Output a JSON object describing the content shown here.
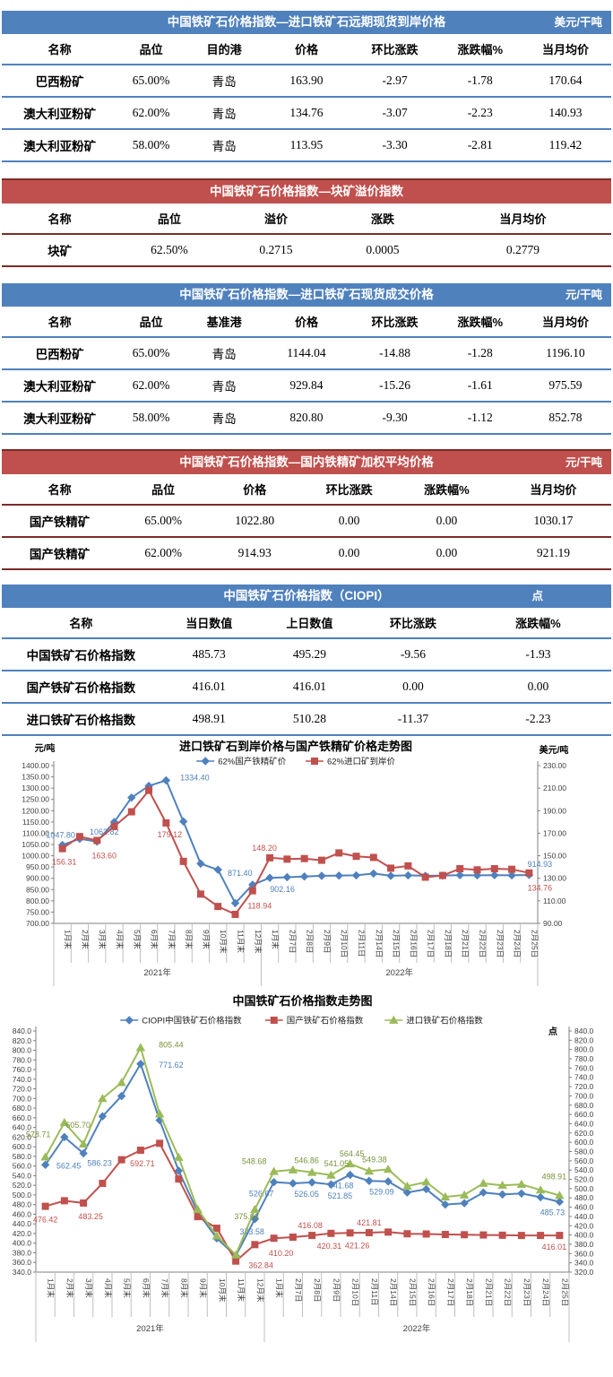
{
  "colors": {
    "blue_header": "#4F81BD",
    "red_header": "#C0504D",
    "red_border": "#7B2C28",
    "axis_gray": "#808080",
    "separator_gray": "#BFBFBF"
  },
  "tables": [
    {
      "theme": "blue",
      "title": "中国铁矿石价格指数—进口铁矿石远期现货到岸价格",
      "unit": "美元/干吨",
      "columns": [
        "名称",
        "品位",
        "目的港",
        "价格",
        "环比涨跌",
        "涨跌幅%",
        "当月均价"
      ],
      "rows": [
        [
          "巴西粉矿",
          "65.00%",
          "青岛",
          "163.90",
          "-2.97",
          "-1.78",
          "170.64"
        ],
        [
          "澳大利亚粉矿",
          "62.00%",
          "青岛",
          "134.76",
          "-3.07",
          "-2.23",
          "140.93"
        ],
        [
          "澳大利亚粉矿",
          "58.00%",
          "青岛",
          "113.95",
          "-3.30",
          "-2.81",
          "119.42"
        ]
      ]
    },
    {
      "theme": "red",
      "title": "中国铁矿石价格指数—块矿溢价指数",
      "unit": "",
      "columns": [
        "名称",
        "品位",
        "溢价",
        "涨跌",
        "当月均价"
      ],
      "rows": [
        [
          "块矿",
          "62.50%",
          "0.2715",
          "0.0005",
          "0.2779"
        ]
      ]
    },
    {
      "theme": "blue",
      "title": "中国铁矿石价格指数—进口铁矿石现货成交价格",
      "unit": "元/干吨",
      "columns": [
        "名称",
        "品位",
        "基准港",
        "价格",
        "环比涨跌",
        "涨跌幅%",
        "当月均价"
      ],
      "rows": [
        [
          "巴西粉矿",
          "65.00%",
          "青岛",
          "1144.04",
          "-14.88",
          "-1.28",
          "1196.10"
        ],
        [
          "澳大利亚粉矿",
          "62.00%",
          "青岛",
          "929.84",
          "-15.26",
          "-1.61",
          "975.59"
        ],
        [
          "澳大利亚粉矿",
          "58.00%",
          "青岛",
          "820.80",
          "-9.30",
          "-1.12",
          "852.78"
        ]
      ]
    },
    {
      "theme": "red",
      "title": "中国铁矿石价格指数—国内铁精矿加权平均价格",
      "unit": "元/干吨",
      "columns": [
        "名称",
        "品位",
        "价格",
        "环比涨跌",
        "涨跌幅%",
        "当月均价"
      ],
      "rows": [
        [
          "国产铁精矿",
          "65.00%",
          "1022.80",
          "0.00",
          "0.00",
          "1030.17"
        ],
        [
          "国产铁精矿",
          "62.00%",
          "914.93",
          "0.00",
          "0.00",
          "921.19"
        ]
      ]
    },
    {
      "theme": "blue",
      "title": "中国铁矿石价格指数（CIOPI）",
      "unit": "点",
      "columns": [
        "名称",
        "当日数值",
        "上日数值",
        "环比涨跌",
        "涨跌幅%"
      ],
      "rows": [
        [
          "中国铁矿石价格指数",
          "485.73",
          "495.29",
          "-9.56",
          "-1.93"
        ],
        [
          "国产铁矿石价格指数",
          "416.01",
          "416.01",
          "0.00",
          "0.00"
        ],
        [
          "进口铁矿石价格指数",
          "498.91",
          "510.28",
          "-11.37",
          "-2.23"
        ]
      ]
    }
  ],
  "chart_data": [
    {
      "type": "line",
      "title": "进口铁矿石到岸价格与国产铁精矿价格走势图",
      "left_axis": {
        "label": "元/吨",
        "min": 700,
        "max": 1400,
        "step": 50,
        "decimals": 2
      },
      "right_axis": {
        "label": "美元/吨",
        "min": 90,
        "max": 230,
        "step": 20,
        "decimals": 2
      },
      "x": [
        "1月末",
        "2月末",
        "3月末",
        "4月末",
        "5月末",
        "6月末",
        "7月末",
        "8月末",
        "9月末",
        "10月末",
        "11月末",
        "12月末",
        "1月末",
        "2月7日",
        "2月8日",
        "2月9日",
        "2月10日",
        "2月11日",
        "2月14日",
        "2月15日",
        "2月16日",
        "2月17日",
        "2月18日",
        "2月21日",
        "2月22日",
        "2月23日",
        "2月24日",
        "2月25日"
      ],
      "groups": [
        {
          "label": "2021年",
          "count": 12
        },
        {
          "label": "2022年",
          "count": 16
        }
      ],
      "legend_position": "top",
      "grid": false,
      "series": [
        {
          "name": "62%国产铁精矿价",
          "color": "#4F81BD",
          "label_color": "#4F81BD",
          "marker": "diamond",
          "axis": "left",
          "values": [
            1047.8,
            1075,
            1062.82,
            1150,
            1258,
            1310,
            1334.4,
            1152,
            965,
            938,
            790,
            871.4,
            902.16,
            905,
            908,
            911,
            912,
            913,
            921,
            911,
            913,
            911,
            912,
            914,
            913,
            914,
            913,
            914.93
          ],
          "labels": [
            {
              "i": 0,
              "t": "1047.80",
              "dx": -2,
              "dy": -8
            },
            {
              "i": 2,
              "t": "1062.82",
              "dx": 8,
              "dy": -8
            },
            {
              "i": 6,
              "t": "1334.40",
              "dx": 32,
              "dy": 0
            },
            {
              "i": 11,
              "t": "871.40",
              "dx": -14,
              "dy": -10
            },
            {
              "i": 12,
              "t": "902.16",
              "dx": 14,
              "dy": 16
            },
            {
              "i": 27,
              "t": "914.93",
              "dx": 12,
              "dy": -9
            }
          ]
        },
        {
          "name": "62%进口矿到岸价",
          "color": "#C0504D",
          "label_color": "#C0504D",
          "marker": "square",
          "axis": "right",
          "values": [
            156.31,
            167,
            163.6,
            176,
            189,
            208,
            179.12,
            145,
            116,
            105,
            98,
            118.94,
            148.2,
            147.0,
            147.5,
            146.0,
            152.5,
            149.5,
            148.5,
            139.0,
            141.0,
            131.0,
            132.5,
            138.5,
            137.5,
            138.5,
            138.0,
            134.76
          ],
          "labels": [
            {
              "i": 0,
              "t": "156.31",
              "dx": 2,
              "dy": 18
            },
            {
              "i": 2,
              "t": "163.60",
              "dx": 8,
              "dy": 20
            },
            {
              "i": 6,
              "t": "179.12",
              "dx": 4,
              "dy": 16
            },
            {
              "i": 11,
              "t": "118.94",
              "dx": 8,
              "dy": 20
            },
            {
              "i": 12,
              "t": "148.20",
              "dx": -6,
              "dy": -8
            },
            {
              "i": 27,
              "t": "134.76",
              "dx": 12,
              "dy": 20
            }
          ]
        }
      ]
    },
    {
      "type": "line",
      "title": "中国铁矿石价格指数走势图",
      "left_axis": {
        "label": "",
        "min": 340,
        "max": 840,
        "step": 20,
        "decimals": 1
      },
      "right_axis": {
        "label": "点",
        "min": 320,
        "max": 840,
        "step": 20,
        "decimals": 1
      },
      "x": [
        "1月末",
        "2月末",
        "3月末",
        "4月末",
        "5月末",
        "6月末",
        "7月末",
        "8月末",
        "9月末",
        "10月末",
        "11月末",
        "12月末",
        "1月末",
        "2月7日",
        "2月8日",
        "2月9日",
        "2月10日",
        "2月11日",
        "2月14日",
        "2月15日",
        "2月16日",
        "2月17日",
        "2月18日",
        "2月21日",
        "2月22日",
        "2月23日",
        "2月24日",
        "2月25日"
      ],
      "groups": [
        {
          "label": "2021年",
          "count": 12
        },
        {
          "label": "2022年",
          "count": 16
        }
      ],
      "legend_position": "top",
      "grid": false,
      "series": [
        {
          "name": "CIOPI中国铁矿石价格指数",
          "color": "#4F81BD",
          "label_color": "#4F81BD",
          "marker": "diamond",
          "axis": "left",
          "values": [
            562.45,
            620,
            586.23,
            663,
            705,
            771.62,
            655,
            550,
            464,
            410,
            373.58,
            450,
            526.67,
            524,
            526.05,
            521.85,
            541.68,
            529.09,
            528,
            505,
            512,
            480,
            483,
            505,
            501,
            503,
            495.29,
            485.73
          ],
          "labels": [
            {
              "i": 0,
              "t": "562.45",
              "dx": 26,
              "dy": 4
            },
            {
              "i": 2,
              "t": "586.23",
              "dx": 18,
              "dy": 14
            },
            {
              "i": 5,
              "t": "771.62",
              "dx": 34,
              "dy": 4
            },
            {
              "i": 10,
              "t": "373.58",
              "dx": 18,
              "dy": -24
            },
            {
              "i": 12,
              "t": "526.67",
              "dx": -14,
              "dy": 16
            },
            {
              "i": 14,
              "t": "526.05",
              "dx": -6,
              "dy": 16
            },
            {
              "i": 15,
              "t": "521.85",
              "dx": 10,
              "dy": 16
            },
            {
              "i": 16,
              "t": "541.68",
              "dx": -10,
              "dy": 15
            },
            {
              "i": 17,
              "t": "529.09",
              "dx": 14,
              "dy": 15
            },
            {
              "i": 27,
              "t": "485.73",
              "dx": -8,
              "dy": 15
            }
          ]
        },
        {
          "name": "国产铁矿石价格指数",
          "color": "#C0504D",
          "label_color": "#C0504D",
          "marker": "square",
          "axis": "left",
          "values": [
            476.42,
            488,
            483.25,
            524,
            573,
            592.71,
            607,
            533,
            455,
            431,
            362.84,
            397,
            410.2,
            412.5,
            416.08,
            420.31,
            421.26,
            421.81,
            423,
            419.5,
            419,
            418,
            417.5,
            417,
            416.5,
            416,
            416.01,
            416.01
          ],
          "labels": [
            {
              "i": 0,
              "t": "476.42",
              "dx": 0,
              "dy": 18
            },
            {
              "i": 2,
              "t": "483.25",
              "dx": 8,
              "dy": 18
            },
            {
              "i": 5,
              "t": "592.71",
              "dx": 2,
              "dy": 18
            },
            {
              "i": 10,
              "t": "362.84",
              "dx": 28,
              "dy": 8
            },
            {
              "i": 12,
              "t": "410.20",
              "dx": 8,
              "dy": 20
            },
            {
              "i": 14,
              "t": "416.08",
              "dx": -2,
              "dy": -8
            },
            {
              "i": 15,
              "t": "420.31",
              "dx": -2,
              "dy": 17
            },
            {
              "i": 16,
              "t": "421.26",
              "dx": 8,
              "dy": 17
            },
            {
              "i": 17,
              "t": "421.81",
              "dx": 0,
              "dy": -8
            },
            {
              "i": 27,
              "t": "416.01",
              "dx": -6,
              "dy": 16
            }
          ]
        },
        {
          "name": "进口铁矿石价格指数",
          "color": "#9BBB59",
          "label_color": "#77933C",
          "marker": "triangle",
          "axis": "left",
          "values": [
            578.71,
            650,
            605.7,
            700,
            733,
            805.44,
            668,
            578,
            470,
            415,
            375.63,
            470,
            548.68,
            552,
            546.86,
            541.05,
            564.45,
            549.38,
            553,
            518,
            527,
            496,
            500,
            524,
            520,
            522,
            510.28,
            498.91
          ],
          "labels": [
            {
              "i": 0,
              "t": "578.71",
              "dx": -8,
              "dy": -22
            },
            {
              "i": 2,
              "t": "605.70",
              "dx": -6,
              "dy": -18
            },
            {
              "i": 5,
              "t": "805.44",
              "dx": 34,
              "dy": 0
            },
            {
              "i": 10,
              "t": "375.63",
              "dx": 12,
              "dy": -40
            },
            {
              "i": 12,
              "t": "548.68",
              "dx": -22,
              "dy": -8
            },
            {
              "i": 14,
              "t": "546.86",
              "dx": -6,
              "dy": -10
            },
            {
              "i": 15,
              "t": "541.05",
              "dx": 6,
              "dy": -10
            },
            {
              "i": 16,
              "t": "564.45",
              "dx": 2,
              "dy": -8
            },
            {
              "i": 17,
              "t": "549.38",
              "dx": 6,
              "dy": -10
            },
            {
              "i": 27,
              "t": "498.91",
              "dx": -6,
              "dy": -18
            }
          ]
        }
      ]
    }
  ]
}
